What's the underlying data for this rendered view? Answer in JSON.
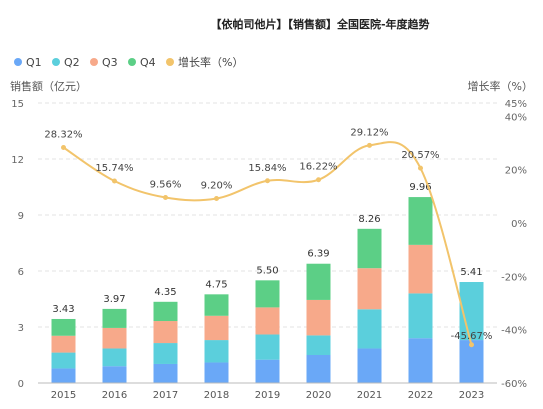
{
  "chart_data": {
    "type": "bar",
    "title": "【依帕司他片】【销售额】全国医院-年度趋势",
    "ylabel_left": "销售额（亿元）",
    "ylabel_right": "增长率（%）",
    "categories": [
      "2015",
      "2016",
      "2017",
      "2018",
      "2019",
      "2020",
      "2021",
      "2022",
      "2023"
    ],
    "series": [
      {
        "name": "Q1",
        "color": "#6aa8f7",
        "values": [
          0.78,
          0.9,
          1.02,
          1.1,
          1.25,
          1.5,
          1.85,
          2.4,
          2.3
        ]
      },
      {
        "name": "Q2",
        "color": "#5bcfdc",
        "values": [
          0.85,
          0.95,
          1.12,
          1.2,
          1.35,
          1.05,
          2.1,
          2.4,
          3.11
        ]
      },
      {
        "name": "Q3",
        "color": "#f7a98a",
        "values": [
          0.9,
          1.1,
          1.18,
          1.3,
          1.45,
          1.9,
          2.2,
          2.6,
          0
        ]
      },
      {
        "name": "Q4",
        "color": "#5ccf86",
        "values": [
          0.9,
          1.02,
          1.03,
          1.15,
          1.45,
          1.94,
          2.11,
          2.56,
          0
        ]
      }
    ],
    "totals": [
      "3.43",
      "3.97",
      "4.35",
      "4.75",
      "5.50",
      "6.39",
      "8.26",
      "9.96",
      "5.41"
    ],
    "growth": {
      "name": "增长率（%）",
      "color": "#f2c46b",
      "values": [
        28.32,
        15.74,
        9.56,
        9.2,
        15.84,
        16.22,
        29.12,
        20.57,
        -45.67
      ],
      "labels": [
        "28.32%",
        "15.74%",
        "9.56%",
        "9.20%",
        "15.84%",
        "16.22%",
        "29.12%",
        "20.57%",
        "-45.67%"
      ]
    },
    "ylim_left": [
      0,
      15
    ],
    "yticks_left": [
      "0",
      "3",
      "6",
      "9",
      "12",
      "15"
    ],
    "ylim_right": [
      -60,
      45
    ],
    "yticks_right": [
      "-60%",
      "-40%",
      "-20%",
      "0%",
      "20%",
      "40%",
      "45%"
    ],
    "legend_position": "top-left",
    "grid": true
  }
}
